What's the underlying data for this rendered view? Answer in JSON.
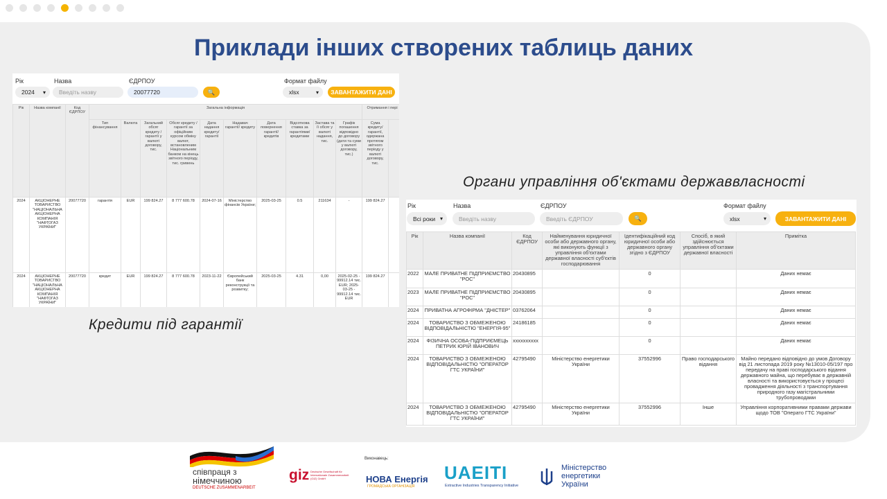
{
  "title": "Приклади інших створених таблиць даних",
  "caption_left": "Кредити під гарантії",
  "caption_right": "Органи управління об'єктами державвласності",
  "screenshot_left": {
    "filters": {
      "year_label": "Рік",
      "year_value": "2024",
      "name_label": "Назва",
      "name_placeholder": "Введіть назву",
      "code_label": "ЄДРПОУ",
      "code_value": "20077720",
      "format_label": "Формат файлу",
      "format_value": "xlsx",
      "download": "ЗАВАНТАЖИТИ ДАНІ"
    },
    "table": {
      "fixed_headers": [
        "Рік",
        "Назва компанії",
        "Код ЄДРПОУ"
      ],
      "groups": [
        {
          "label": "Загальна інформація",
          "columns": [
            "Тип фінансування",
            "Валюта",
            "Загальний обсяг кредиту / гарантії у валюті договору, тис.",
            "Обсяг кредиту / гарантії за офіційним курсом обміну валют, встановленим Національним банком на кінець звітного періоду, тис. гривень",
            "Дата надання кредиту/ гарантії",
            "Надавач гарантії/ кредиту",
            "Дата повернення гарантії/ кредитів",
            "Відсоткова ставка за гарантіями/ кредитами",
            "Застава та її обсяг у валюті надання, тис.",
            "Графік погашення відповідно до договору (дати та суми у валюті договору, тис.)"
          ]
        },
        {
          "label": "Отримання і пері",
          "columns": [
            "Сума кредиту/ гарантії, одержана протягом звітного періоду у валюті договору, тис."
          ]
        }
      ],
      "rows": [
        [
          "2024",
          "АКЦІОНЕРНЕ ТОВАРИСТВО \"НАЦІОНАЛЬНА АКЦІОНЕРНА КОМПАНІЯ \"НАФТОГАЗ УКРАЇНИ\"",
          "20077720",
          "гарантія",
          "EUR",
          "199 824.27",
          "8 777 600.78",
          "2024-07-16",
          "Міністерство фінансів України;",
          "2025-03-25",
          "0.5",
          "211634",
          "-",
          "199 824.27"
        ],
        [
          "2024",
          "АКЦІОНЕРНЕ ТОВАРИСТВО \"НАЦІОНАЛЬНА АКЦІОНЕРНА КОМПАНІЯ \"НАФТОГАЗ УКРАЇНИ\"",
          "20077720",
          "кредит",
          "EUR",
          "199 824.27",
          "8 777 600.78",
          "2023-11-22",
          "Європейський банк реконструкції та розвитку;",
          "2025-03-25",
          "4.31",
          "0,00",
          "2025-02-25 - 99912.14 тис. EUR; 2025-03-25 - 99912.14 тис. EUR",
          "199 824.27"
        ]
      ]
    }
  },
  "screenshot_right": {
    "filters": {
      "year_label": "Рік",
      "year_value": "Всі роки",
      "name_label": "Назва",
      "name_placeholder": "Введіть назву",
      "code_label": "ЄДРПОУ",
      "code_placeholder": "Введіть ЄДРПОУ",
      "format_label": "Формат файлу",
      "format_value": "xlsx",
      "download": "ЗАВАНТАЖИТИ ДАНІ"
    },
    "table": {
      "headers": [
        "Рік",
        "Назва компанії",
        "Код ЄДРПОУ",
        "Найменування юридичної особи або державного органу, які виконують функції з управління об'єктами державної власності суб'єктів господарювання",
        "Ідентифікаційний код юридичної особи або державного органу згідно з ЄДРПОУ",
        "Спосіб, в який здійснюється управління об'єктами державної власності",
        "Примітка"
      ],
      "rows": [
        [
          "2022",
          "МАЛЕ ПРИВАТНЕ ПІДПРИЄМСТВО \"РОС\"",
          "20430895",
          null,
          "0",
          null,
          "Даних немає"
        ],
        [
          "2023",
          "МАЛЕ ПРИВАТНЕ ПІДПРИЄМСТВО \"РОС\"",
          "20430895",
          null,
          "0",
          null,
          "Даних немає"
        ],
        [
          "2024",
          "ПРИВАТНА АГРОФІРМА \"ДНІСТЕР\"",
          "03762064",
          null,
          "0",
          null,
          "Даних немає"
        ],
        [
          "2024",
          "ТОВАРИСТВО З ОБМЕЖЕНОЮ ВІДПОВІДАЛЬНІСТЮ \"ЕНЕРГІЯ-95\"",
          "24186185",
          null,
          "0",
          null,
          "Даних немає"
        ],
        [
          "2024",
          "ФІЗИЧНА ОСОБА-ПІДПРИЄМЕЦЬ ПЕТРИК ЮРІЙ ІВАНОВИЧ",
          "xxxxxxxxxx",
          null,
          "0",
          null,
          "Даних немає"
        ],
        [
          "2024",
          "ТОВАРИСТВО З ОБМЕЖЕНОЮ ВІДПОВІДАЛЬНІСТЮ \"ОПЕРАТОР ГТС УКРАЇНИ\"",
          "42795490",
          "Міністерство енергетики України",
          "37552996",
          "Право господарського відання",
          "Майно передано відповідно до умов Договору від 21 листопада 2019 року №13010-05/197 про передачу на праві господарського відання державного майна, що перебуває в державній власності та використовується у процесі провадження діяльності з транспортування природного газу магістральними трубопроводами"
        ],
        [
          "2024",
          "ТОВАРИСТВО З ОБМЕЖЕНОЮ ВІДПОВІДАЛЬНІСТЮ \"ОПЕРАТОР ГТС УКРАЇНИ\"",
          "42795490",
          "Міністерство енергетики України",
          "37552996",
          "Інше",
          "Управління корпоративними правами держави щодо ТОВ \"Операто ГТС України\""
        ]
      ]
    }
  },
  "logos": {
    "cooperation_line1": "співпраця з",
    "cooperation_line2": "німеччиною",
    "cooperation_line3": "DEUTSCHE ZUSAMMENARBEIT",
    "giz": "giz",
    "giz_full": "Deutsche Gesellschaft für Internationale Zusammenarbeit (GIZ) GmbH",
    "executor": "Виконавець:",
    "nova": "НОВА Енергія",
    "nova_sub": "ГРОМАДСЬКА ОРГАНІЗАЦІЯ",
    "uaeiti": "UAEITI",
    "uaeiti_sub": "Extractive Industries Transparency Initiative",
    "ministry": "Міністерство енергетики України"
  }
}
